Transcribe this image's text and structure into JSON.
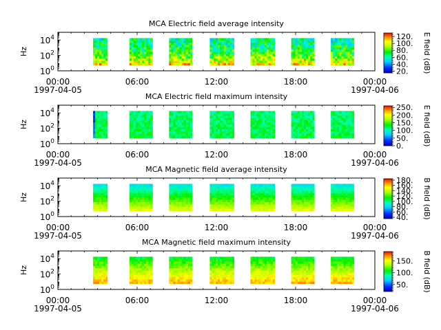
{
  "chart_data": [
    {
      "type": "heatmap",
      "title": "MCA  Electric field average intensity",
      "ylabel": "Hz",
      "colorbar_label": "E field (dB)",
      "colorbar_ticks": [
        "120.",
        "100.",
        "80.",
        "60.",
        "40.",
        "20."
      ],
      "colorbar_tick_values": [
        120,
        100,
        80,
        60,
        40,
        20
      ],
      "colorbar_range": [
        15,
        130
      ],
      "y_ticks": [
        {
          "base": "10",
          "exp": "4",
          "value": 10000
        },
        {
          "base": "10",
          "exp": "2",
          "value": 100
        },
        {
          "base": "10",
          "exp": "0",
          "value": 1
        }
      ],
      "ylim": [
        1,
        100000
      ],
      "yscale": "log",
      "x_ticks": [
        "00:00",
        "06:00",
        "12:00",
        "18:00",
        "00:00"
      ],
      "x_tick_values": [
        "1997-04-05T00:00",
        "1997-04-05T06:00",
        "1997-04-05T12:00",
        "1997-04-05T18:00",
        "1997-04-06T00:00"
      ],
      "x_dates": [
        "1997-04-05",
        "1997-04-06"
      ],
      "xlim": [
        "1997-04-05T00:00",
        "1997-04-06T00:00"
      ],
      "data_segments": [
        [
          "1997-04-05T02:40",
          "1997-04-05T03:45"
        ],
        [
          "1997-04-05T05:25",
          "1997-04-05T07:10"
        ],
        [
          "1997-04-05T08:25",
          "1997-04-05T10:10"
        ],
        [
          "1997-04-05T11:30",
          "1997-04-05T13:20"
        ],
        [
          "1997-04-05T14:35",
          "1997-04-05T16:25"
        ],
        [
          "1997-04-05T17:40",
          "1997-04-05T19:25"
        ],
        [
          "1997-04-05T20:40",
          "1997-04-05T22:25"
        ]
      ],
      "freq_range_hz": [
        5.6,
        17800
      ],
      "typical_level_db": 70
    },
    {
      "type": "heatmap",
      "title": "MCA  Electric field maximum intensity",
      "ylabel": "Hz",
      "colorbar_label": "E field (dB)",
      "colorbar_ticks": [
        "250.",
        "200.",
        "150.",
        "100.",
        "50.",
        "0."
      ],
      "colorbar_tick_values": [
        250,
        200,
        150,
        100,
        50,
        0
      ],
      "colorbar_range": [
        0,
        260
      ],
      "y_ticks": [
        {
          "base": "10",
          "exp": "4",
          "value": 10000
        },
        {
          "base": "10",
          "exp": "2",
          "value": 100
        },
        {
          "base": "10",
          "exp": "0",
          "value": 1
        }
      ],
      "ylim": [
        1,
        100000
      ],
      "yscale": "log",
      "x_ticks": [
        "00:00",
        "06:00",
        "12:00",
        "18:00",
        "00:00"
      ],
      "x_tick_values": [
        "1997-04-05T00:00",
        "1997-04-05T06:00",
        "1997-04-05T12:00",
        "1997-04-05T18:00",
        "1997-04-06T00:00"
      ],
      "x_dates": [
        "1997-04-05",
        "1997-04-06"
      ],
      "xlim": [
        "1997-04-05T00:00",
        "1997-04-06T00:00"
      ],
      "data_segments": [
        [
          "1997-04-05T02:40",
          "1997-04-05T03:45"
        ],
        [
          "1997-04-05T05:25",
          "1997-04-05T07:10"
        ],
        [
          "1997-04-05T08:25",
          "1997-04-05T10:10"
        ],
        [
          "1997-04-05T11:30",
          "1997-04-05T13:20"
        ],
        [
          "1997-04-05T14:35",
          "1997-04-05T16:25"
        ],
        [
          "1997-04-05T17:40",
          "1997-04-05T19:25"
        ],
        [
          "1997-04-05T20:40",
          "1997-04-05T22:25"
        ]
      ],
      "freq_range_hz": [
        5.6,
        17800
      ],
      "typical_level_db": 115
    },
    {
      "type": "heatmap",
      "title": "MCA  Magnetic field average intensity",
      "ylabel": "Hz",
      "colorbar_label": "B field (dB)",
      "colorbar_ticks": [
        "180.",
        "160.",
        "140.",
        "120.",
        "100.",
        "80.",
        "60.",
        "40."
      ],
      "colorbar_tick_values": [
        180,
        160,
        140,
        120,
        100,
        80,
        60,
        40
      ],
      "colorbar_range": [
        35,
        185
      ],
      "y_ticks": [
        {
          "base": "10",
          "exp": "4",
          "value": 10000
        },
        {
          "base": "10",
          "exp": "2",
          "value": 100
        },
        {
          "base": "10",
          "exp": "0",
          "value": 1
        }
      ],
      "ylim": [
        1,
        100000
      ],
      "yscale": "log",
      "x_ticks": [
        "00:00",
        "06:00",
        "12:00",
        "18:00",
        "00:00"
      ],
      "x_tick_values": [
        "1997-04-05T00:00",
        "1997-04-05T06:00",
        "1997-04-05T12:00",
        "1997-04-05T18:00",
        "1997-04-06T00:00"
      ],
      "x_dates": [
        "1997-04-05",
        "1997-04-06"
      ],
      "xlim": [
        "1997-04-05T00:00",
        "1997-04-06T00:00"
      ],
      "data_segments": [
        [
          "1997-04-05T02:40",
          "1997-04-05T03:45"
        ],
        [
          "1997-04-05T05:25",
          "1997-04-05T07:10"
        ],
        [
          "1997-04-05T08:25",
          "1997-04-05T10:10"
        ],
        [
          "1997-04-05T11:30",
          "1997-04-05T13:20"
        ],
        [
          "1997-04-05T14:35",
          "1997-04-05T16:25"
        ],
        [
          "1997-04-05T17:40",
          "1997-04-05T19:25"
        ],
        [
          "1997-04-05T20:40",
          "1997-04-05T22:25"
        ]
      ],
      "freq_range_hz": [
        5.6,
        17800
      ],
      "typical_level_db": 110
    },
    {
      "type": "heatmap",
      "title": "MCA  Magnetic field maximum intensity",
      "ylabel": "Hz",
      "colorbar_label": "B field (dB)",
      "colorbar_ticks": [
        "150.",
        "100.",
        "50."
      ],
      "colorbar_tick_values": [
        150,
        100,
        50
      ],
      "colorbar_range": [
        20,
        190
      ],
      "y_ticks": [
        {
          "base": "10",
          "exp": "4",
          "value": 10000
        },
        {
          "base": "10",
          "exp": "2",
          "value": 100
        },
        {
          "base": "10",
          "exp": "0",
          "value": 1
        }
      ],
      "ylim": [
        1,
        100000
      ],
      "yscale": "log",
      "x_ticks": [
        "00:00",
        "06:00",
        "12:00",
        "18:00",
        "00:00"
      ],
      "x_tick_values": [
        "1997-04-05T00:00",
        "1997-04-05T06:00",
        "1997-04-05T12:00",
        "1997-04-05T18:00",
        "1997-04-06T00:00"
      ],
      "x_dates": [
        "1997-04-05",
        "1997-04-06"
      ],
      "xlim": [
        "1997-04-05T00:00",
        "1997-04-06T00:00"
      ],
      "data_segments": [
        [
          "1997-04-05T02:40",
          "1997-04-05T03:45"
        ],
        [
          "1997-04-05T05:25",
          "1997-04-05T07:10"
        ],
        [
          "1997-04-05T08:25",
          "1997-04-05T10:10"
        ],
        [
          "1997-04-05T11:30",
          "1997-04-05T13:20"
        ],
        [
          "1997-04-05T14:35",
          "1997-04-05T16:25"
        ],
        [
          "1997-04-05T17:40",
          "1997-04-05T19:25"
        ],
        [
          "1997-04-05T20:40",
          "1997-04-05T22:25"
        ]
      ],
      "freq_range_hz": [
        5.6,
        17800
      ],
      "typical_level_db": 125
    }
  ]
}
